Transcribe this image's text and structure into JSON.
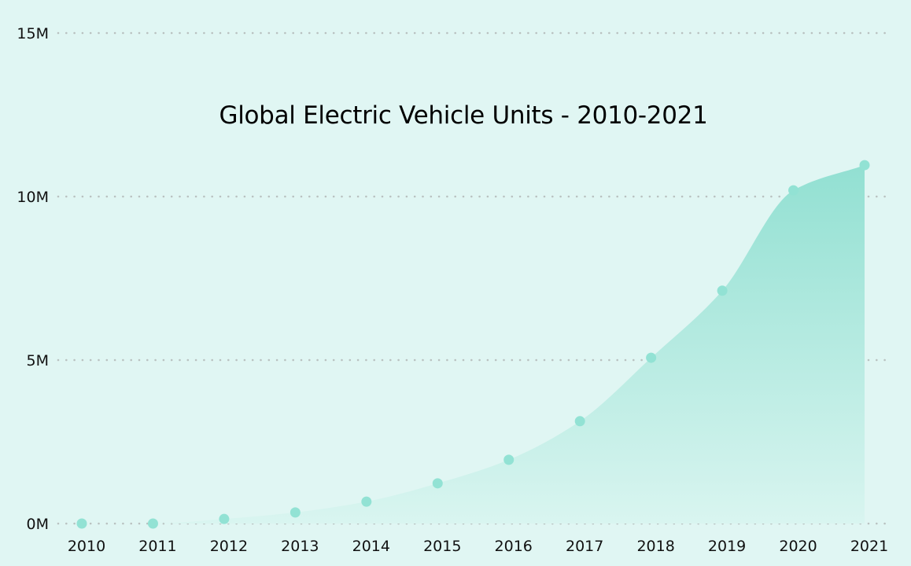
{
  "chart_data": {
    "type": "area",
    "title": "Global Electric Vehicle Units - 2010-2021",
    "xlabel": "",
    "ylabel": "",
    "categories": [
      "2010",
      "2011",
      "2012",
      "2013",
      "2014",
      "2015",
      "2016",
      "2017",
      "2018",
      "2019",
      "2020",
      "2021"
    ],
    "series": [
      {
        "name": "Electric Vehicle Units",
        "values": [
          0,
          0,
          140000,
          340000,
          670000,
          1230000,
          1950000,
          3130000,
          5070000,
          7120000,
          10190000,
          10960000
        ]
      }
    ],
    "ylim": [
      0,
      15000000
    ],
    "yticks": [
      0,
      5000000,
      10000000,
      15000000
    ],
    "ytick_labels": [
      "0M",
      "5M",
      "10M",
      "15M"
    ],
    "grid": "horizontal-dotted",
    "legend": "none",
    "colors": {
      "background": "#e0f6f3",
      "area_top": "#92e0d2",
      "area_bottom": "#d9f5f0",
      "marker": "#92e2d4",
      "grid": "#b9c1c0",
      "text": "#111111"
    }
  }
}
